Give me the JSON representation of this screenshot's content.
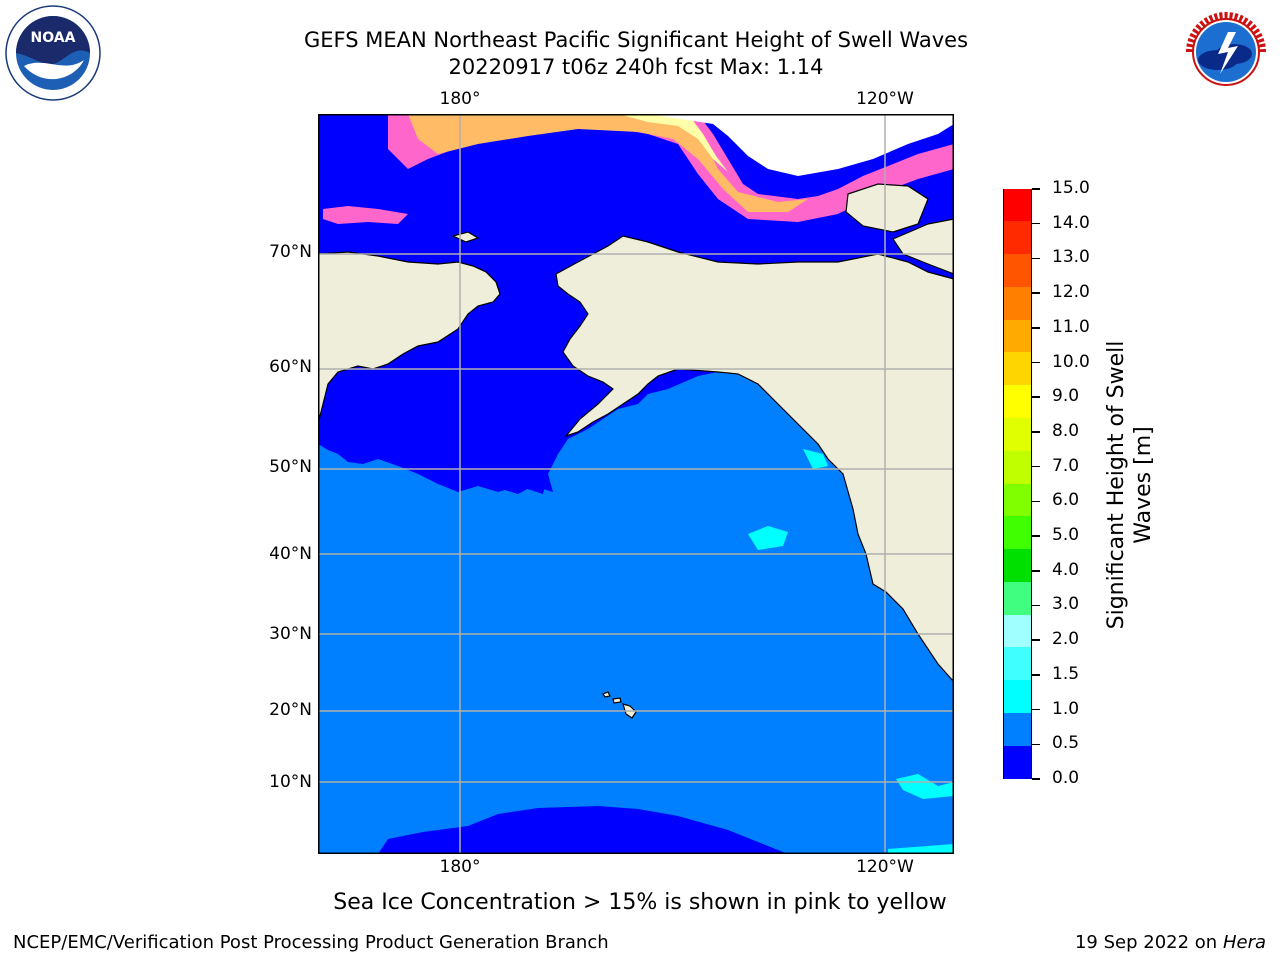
{
  "header": {
    "title_line1": "GEFS MEAN Northeast Pacific Significant Height of Swell Waves",
    "title_line2": "20220917 t06z 240h fcst   Max: 1.14"
  },
  "map": {
    "lon_labels_top": [
      "180°",
      "120°W"
    ],
    "lon_labels_bottom": [
      "180°",
      "120°W"
    ],
    "lat_labels": [
      "70°N",
      "60°N",
      "50°N",
      "40°N",
      "30°N",
      "20°N",
      "10°N"
    ],
    "colors": {
      "land": "#efeedb",
      "swell_0_0_5": "#0000ff",
      "swell_0_5_1_0": "#0080ff",
      "swell_1_0_1_5": "#00ffff",
      "ice_pink": "#ff66cc",
      "ice_orange": "#ffbb66",
      "ice_yellow": "#ffffaa",
      "grid": "#b0b0b0"
    }
  },
  "colorbar": {
    "label": "Significant Height of Swell Waves [m]",
    "label_line1": "Significant Height of Swell",
    "label_line2": "Waves [m]",
    "ticks": [
      "15.0",
      "14.0",
      "13.0",
      "12.0",
      "11.0",
      "10.0",
      "9.0",
      "8.0",
      "7.0",
      "6.0",
      "5.0",
      "4.0",
      "3.0",
      "2.0",
      "1.5",
      "1.0",
      "0.5",
      "0.0"
    ],
    "colors_top_to_bottom": [
      "#ff0000",
      "#ff2a00",
      "#ff5500",
      "#ff8000",
      "#ffaa00",
      "#ffd500",
      "#ffff00",
      "#e0ff00",
      "#c0ff00",
      "#80ff00",
      "#40ff00",
      "#00e000",
      "#40ff80",
      "#a0ffff",
      "#40ffff",
      "#00ffff",
      "#0080ff",
      "#0000ff"
    ]
  },
  "caption": "Sea Ice Concentration > 15% is shown in pink to yellow",
  "footer": {
    "left": "NCEP/EMC/Verification Post Processing Product Generation Branch",
    "date": "19 Sep 2022 on",
    "host": "Hera"
  },
  "logos": {
    "left_icon": "noaa-logo",
    "left_text": "NOAA",
    "right_icon": "nws-logo",
    "right_text": "NATIONAL WEATHER SERVICE"
  }
}
